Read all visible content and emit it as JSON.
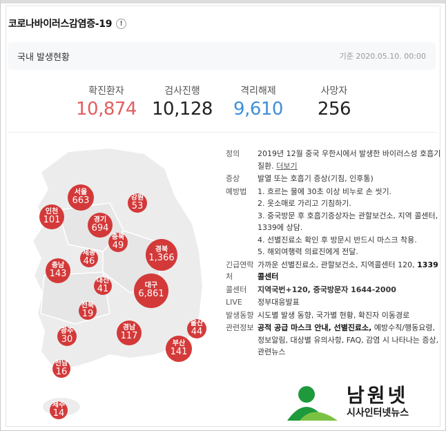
{
  "header": {
    "title": "코로나바이러스감염증-19",
    "info_icon": "!"
  },
  "subbar": {
    "title": "국내 발생현황",
    "date": "기준 2020.05.10. 00:00"
  },
  "stats": [
    {
      "label": "확진환자",
      "value": "10,874",
      "color": "#e05f5f"
    },
    {
      "label": "검사진행",
      "value": "10,128",
      "color": "#222222"
    },
    {
      "label": "격리해제",
      "value": "9,610",
      "color": "#3d8fd8"
    },
    {
      "label": "사망자",
      "value": "256",
      "color": "#222222"
    }
  ],
  "regions": [
    {
      "name": "서울",
      "value": "663"
    },
    {
      "name": "인천",
      "value": "101"
    },
    {
      "name": "경기",
      "value": "694"
    },
    {
      "name": "강원",
      "value": "53"
    },
    {
      "name": "충북",
      "value": "49"
    },
    {
      "name": "세종",
      "value": "46"
    },
    {
      "name": "충남",
      "value": "143"
    },
    {
      "name": "대전",
      "value": "41"
    },
    {
      "name": "경북",
      "value": "1,366"
    },
    {
      "name": "대구",
      "value": "6,861"
    },
    {
      "name": "전북",
      "value": "19"
    },
    {
      "name": "광주",
      "value": "30"
    },
    {
      "name": "경남",
      "value": "117"
    },
    {
      "name": "울산",
      "value": "44"
    },
    {
      "name": "부산",
      "value": "141"
    },
    {
      "name": "전남",
      "value": "16"
    },
    {
      "name": "제주",
      "value": "14"
    }
  ],
  "info": {
    "definition": {
      "label": "정의",
      "text": "2019년 12월 중국 우한시에서 발생한 바이러스성 호흡기 질환.",
      "more": "더보기"
    },
    "symptom": {
      "label": "증상",
      "text": "발열 또는 호흡기 증상(기침, 인후통)"
    },
    "prevention": {
      "label": "예방법",
      "items": [
        "1. 흐르는 물에 30초 이상 비누로 손 씻기.",
        "2. 옷소매로 가리고 기침하기.",
        "3. 중국방문 후 호흡기증상자는 관할보건소, 지역 콜센터, 1339에 상담.",
        "4. 선별진료소 확인 후 방문시 반드시 마스크 착용.",
        "5. 해외여행력 의료진에게 전달."
      ]
    },
    "emergency": {
      "label": "긴급연락처",
      "text": "가까운 선별진료소, 관할보건소, 지역콜센터 120,",
      "bold": "1339 콜센터"
    },
    "callcenter": {
      "label": "콜센터",
      "text": "지역국번+120, 중국방문자 1644-2000"
    },
    "live": {
      "label": "LIVE",
      "text": "정부대응발표"
    },
    "trend": {
      "label": "발생동향",
      "text": "시도별 발생 동향, 국가별 현황, 확진자 이동경로"
    },
    "related": {
      "label": "관련정보",
      "bold": "공적 공급 마스크 안내, 선별진료소,",
      "text": "예방수칙/행동요령, 정보알림, 대상별 유의사항, FAQ, 감염 시 나타나는 증상, 관련뉴스"
    }
  },
  "watermark": {
    "title": "남원넷",
    "subtitle": "시사인터넷뉴스"
  },
  "colors": {
    "bubble": "#d22c2c",
    "map_fill": "#ececec",
    "map_stroke": "#ffffff"
  }
}
